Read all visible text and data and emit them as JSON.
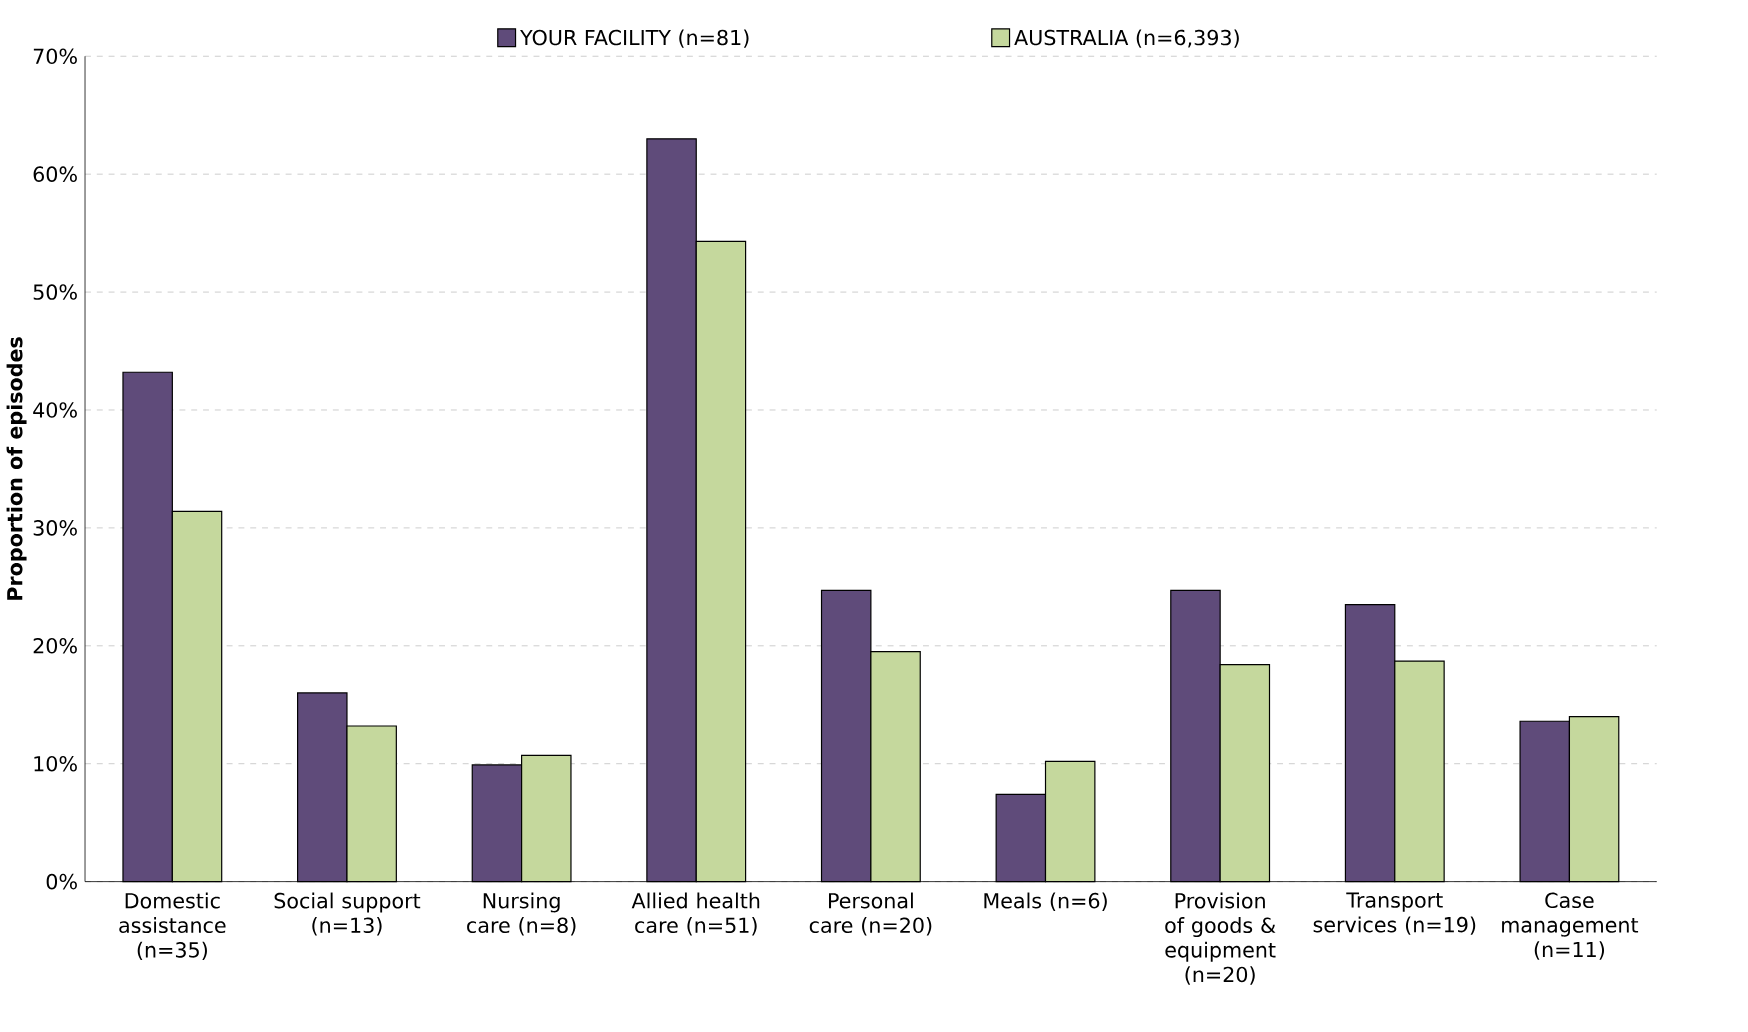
{
  "chart_data": {
    "type": "bar",
    "ylabel": "Proportion of episodes",
    "categories": [
      "Domestic assistance (n=35)",
      "Social support (n=13)",
      "Nursing care (n=8)",
      "Allied health care (n=51)",
      "Personal care (n=20)",
      "Meals (n=6)",
      "Provision of goods & equipment (n=20)",
      "Transport services (n=19)",
      "Case management (n=11)"
    ],
    "series": [
      {
        "name": "YOUR FACILITY (n=81)",
        "color": "#5f4b7a",
        "values": [
          43.2,
          16.0,
          9.9,
          63.0,
          24.7,
          7.4,
          24.7,
          23.5,
          13.6
        ]
      },
      {
        "name": "AUSTRALIA (n=6,393)",
        "color": "#c5d89d",
        "values": [
          31.4,
          13.2,
          10.7,
          54.3,
          19.5,
          10.2,
          18.4,
          18.7,
          14.0
        ]
      }
    ],
    "ylim": [
      0,
      70
    ],
    "yticks": [
      {
        "value": 0,
        "label": "0%"
      },
      {
        "value": 10,
        "label": "10%"
      },
      {
        "value": 20,
        "label": "20%"
      },
      {
        "value": 30,
        "label": "30%"
      },
      {
        "value": 40,
        "label": "40%"
      },
      {
        "value": 50,
        "label": "50%"
      },
      {
        "value": 60,
        "label": "60%"
      },
      {
        "value": 70,
        "label": "70%"
      }
    ],
    "grid": "y",
    "legend": "top"
  }
}
